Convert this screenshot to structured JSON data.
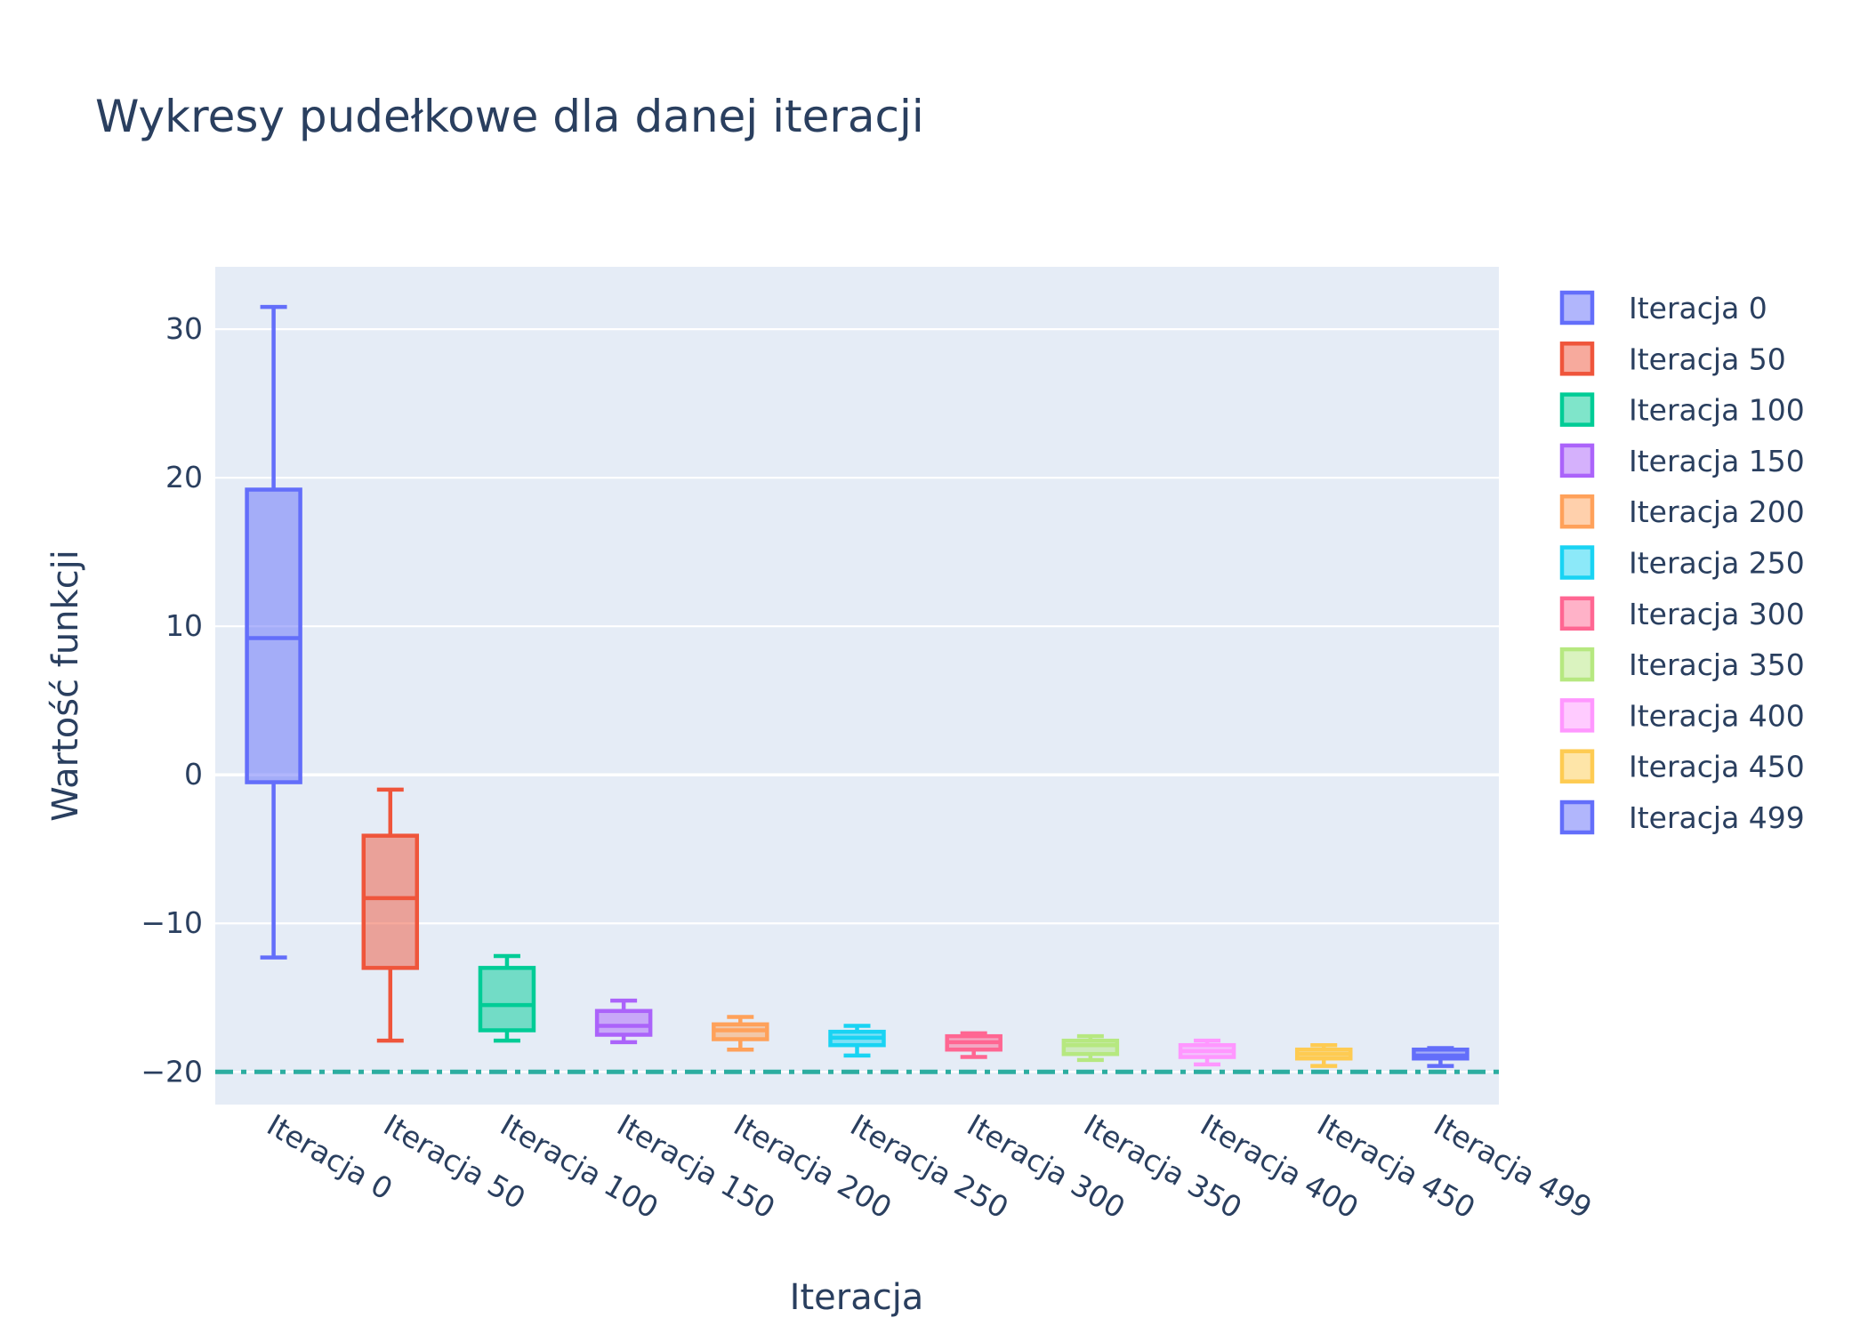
{
  "chart_data": {
    "type": "box",
    "title": "Wykresy pudełkowe dla danej iteracji",
    "xlabel": "Iteracja",
    "ylabel": "Wartość funkcji",
    "ylim": [
      -22.2,
      34.2
    ],
    "yticks": [
      -20,
      -10,
      0,
      10,
      20,
      30
    ],
    "ytick_labels": [
      "−20",
      "−10",
      "0",
      "10",
      "20",
      "30"
    ],
    "grid": true,
    "legend_position": "right",
    "reference_line": {
      "y": -20,
      "style": "dashdot",
      "color": "#2cada0"
    },
    "categories": [
      "Iteracja 0",
      "Iteracja 50",
      "Iteracja 100",
      "Iteracja 150",
      "Iteracja 200",
      "Iteracja 250",
      "Iteracja 300",
      "Iteracja 350",
      "Iteracja 400",
      "Iteracja 450",
      "Iteracja 499"
    ],
    "series": [
      {
        "name": "Iteracja 0",
        "color": "#636efa",
        "whisker_low": -12.3,
        "q1": -0.5,
        "median": 9.2,
        "q3": 19.2,
        "whisker_high": 31.5
      },
      {
        "name": "Iteracja 50",
        "color": "#ef553b",
        "whisker_low": -17.9,
        "q1": -13.0,
        "median": -8.3,
        "q3": -4.1,
        "whisker_high": -1.0
      },
      {
        "name": "Iteracja 100",
        "color": "#00cc96",
        "whisker_low": -17.9,
        "q1": -17.2,
        "median": -15.5,
        "q3": -13.0,
        "whisker_high": -12.2
      },
      {
        "name": "Iteracja 150",
        "color": "#ab63fa",
        "whisker_low": -18.0,
        "q1": -17.5,
        "median": -16.9,
        "q3": -15.9,
        "whisker_high": -15.2
      },
      {
        "name": "Iteracja 200",
        "color": "#ffa15a",
        "whisker_low": -18.5,
        "q1": -17.8,
        "median": -17.2,
        "q3": -16.8,
        "whisker_high": -16.3
      },
      {
        "name": "Iteracja 250",
        "color": "#19d3f3",
        "whisker_low": -18.9,
        "q1": -18.2,
        "median": -17.7,
        "q3": -17.3,
        "whisker_high": -16.9
      },
      {
        "name": "Iteracja 300",
        "color": "#ff6692",
        "whisker_low": -19.0,
        "q1": -18.5,
        "median": -18.0,
        "q3": -17.6,
        "whisker_high": -17.4
      },
      {
        "name": "Iteracja 350",
        "color": "#b6e880",
        "whisker_low": -19.2,
        "q1": -18.8,
        "median": -18.2,
        "q3": -17.9,
        "whisker_high": -17.6
      },
      {
        "name": "Iteracja 400",
        "color": "#ff97ff",
        "whisker_low": -19.5,
        "q1": -19.0,
        "median": -18.6,
        "q3": -18.2,
        "whisker_high": -17.9
      },
      {
        "name": "Iteracja 450",
        "color": "#fecb52",
        "whisker_low": -19.6,
        "q1": -19.1,
        "median": -18.8,
        "q3": -18.5,
        "whisker_high": -18.2
      },
      {
        "name": "Iteracja 499",
        "color": "#636efa",
        "whisker_low": -19.6,
        "q1": -19.1,
        "median": -18.9,
        "q3": -18.5,
        "whisker_high": -18.4
      }
    ]
  }
}
